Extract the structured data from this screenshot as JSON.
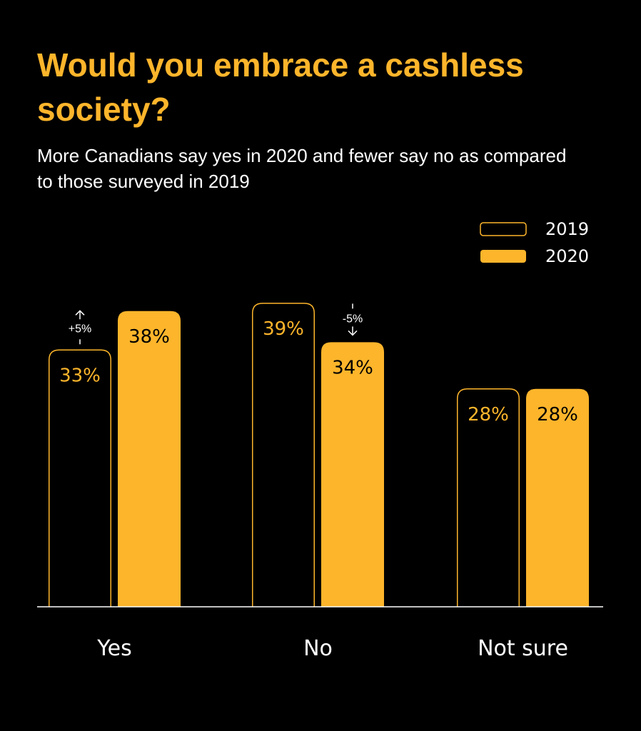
{
  "chart_data": {
    "type": "bar",
    "title": "Would you embrace a cashless society?",
    "subtitle": "More Canadians say yes in 2020 and fewer say no as compared to those surveyed in 2019",
    "categories": [
      "Yes",
      "No",
      "Not sure"
    ],
    "series": [
      {
        "name": "2019",
        "values": [
          33,
          39,
          28
        ],
        "labels": [
          "33%",
          "39%",
          "28%"
        ],
        "style": "outline"
      },
      {
        "name": "2020",
        "values": [
          38,
          34,
          28
        ],
        "labels": [
          "38%",
          "34%",
          "28%"
        ],
        "style": "filled"
      }
    ],
    "annotations": [
      {
        "category": "Yes",
        "series": "2019",
        "text": "+5%",
        "direction": "up"
      },
      {
        "category": "No",
        "series": "2020",
        "text": "-5%",
        "direction": "down"
      }
    ],
    "ylim": [
      0,
      39
    ],
    "grid": false,
    "legend_placement": "top-right",
    "colors": {
      "accent": "#FDB52B",
      "background": "#000000",
      "text": "#FFFFFF"
    }
  }
}
